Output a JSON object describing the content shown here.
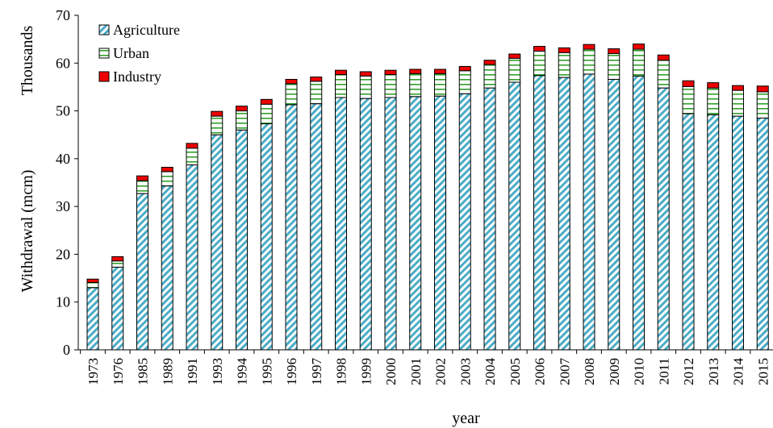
{
  "chart_data": {
    "type": "bar",
    "stacked": true,
    "xlabel": "year",
    "ylabel": "Withdrawal (mcm)",
    "yunit_label": "Thousands",
    "ylim": [
      0,
      70
    ],
    "yticks": [
      "0",
      "10",
      "20",
      "30",
      "40",
      "50",
      "60",
      "70"
    ],
    "ytick_values": [
      0,
      10,
      20,
      30,
      40,
      50,
      60,
      70
    ],
    "legend_position": "top-left",
    "grid": false,
    "categories": [
      "1973",
      "1976",
      "1985",
      "1989",
      "1991",
      "1993",
      "1994",
      "1995",
      "1996",
      "1997",
      "1998",
      "1999",
      "2000",
      "2001",
      "2002",
      "2003",
      "2004",
      "2005",
      "2006",
      "2007",
      "2008",
      "2009",
      "2010",
      "2011",
      "2012",
      "2013",
      "2014",
      "2015"
    ],
    "series": [
      {
        "name": "Agriculture",
        "color": "#4bacc6",
        "values": [
          13.0,
          17.3,
          32.7,
          34.3,
          38.7,
          45.0,
          46.0,
          47.3,
          51.3,
          51.5,
          52.8,
          52.6,
          52.8,
          53.0,
          53.1,
          53.6,
          54.8,
          56.0,
          57.4,
          57.0,
          57.7,
          56.6,
          57.3,
          54.8,
          49.4,
          49.2,
          48.9,
          48.5
        ]
      },
      {
        "name": "Urban",
        "color": "#33a02c",
        "values": [
          1.1,
          1.3,
          2.7,
          3.0,
          3.5,
          3.9,
          4.0,
          4.1,
          4.4,
          4.7,
          4.8,
          4.7,
          4.8,
          4.8,
          4.7,
          4.8,
          4.9,
          5.0,
          5.1,
          5.2,
          5.2,
          5.4,
          5.6,
          5.8,
          5.7,
          5.6,
          5.4,
          5.5
        ]
      },
      {
        "name": "Industry",
        "color": "#ee0000",
        "values": [
          0.7,
          0.9,
          1.0,
          0.9,
          1.0,
          1.0,
          1.0,
          1.0,
          0.9,
          0.9,
          0.9,
          0.9,
          0.9,
          0.9,
          0.9,
          0.9,
          0.9,
          0.9,
          1.0,
          1.0,
          1.0,
          1.0,
          1.1,
          1.1,
          1.2,
          1.1,
          1.0,
          1.2
        ]
      }
    ]
  }
}
